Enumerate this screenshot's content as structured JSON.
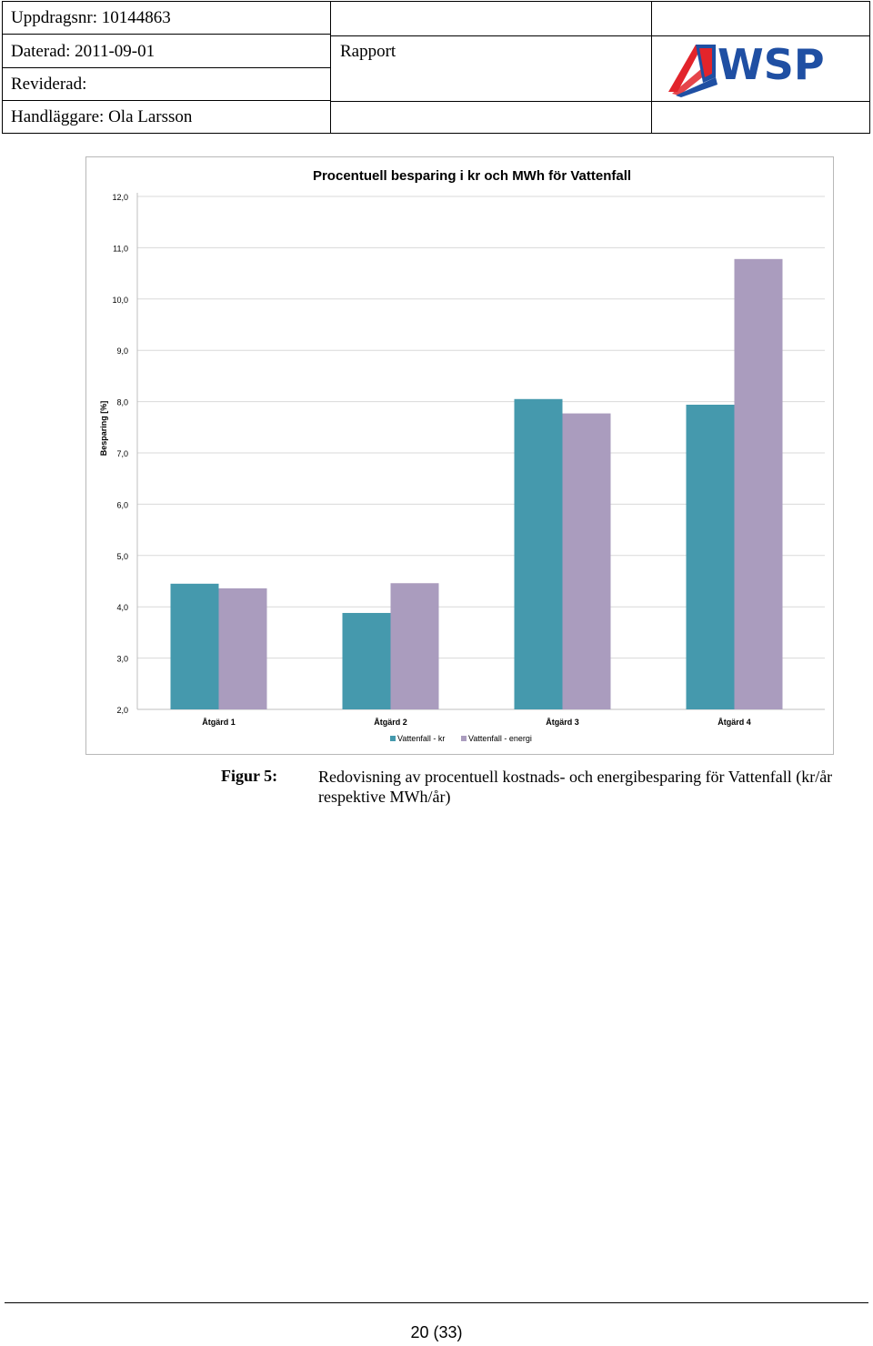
{
  "header": {
    "assignment": "Uppdragsnr: 10144863",
    "dated": "Daterad: 2011-09-01",
    "revised": "Reviderad:",
    "handler": "Handläggare: Ola Larsson",
    "doc_type": "Rapport",
    "logo_text": "WSP",
    "logo_colors": {
      "blue": "#1f4fa3",
      "red": "#e2242b"
    }
  },
  "chart_data": {
    "type": "bar",
    "title": "Procentuell besparing i kr och MWh för Vattenfall",
    "ylabel": "Besparing [%]",
    "xlabel": "",
    "ylim": [
      2.0,
      12.0
    ],
    "yticks": [
      "2,0",
      "3,0",
      "4,0",
      "5,0",
      "6,0",
      "7,0",
      "8,0",
      "9,0",
      "10,0",
      "11,0",
      "12,0"
    ],
    "grid": true,
    "legend_position": "bottom",
    "categories": [
      "Åtgärd 1",
      "Åtgärd 2",
      "Åtgärd 3",
      "Åtgärd 4"
    ],
    "series": [
      {
        "name": "Vattenfall - kr",
        "color": "#4599ad",
        "values": [
          4.45,
          3.88,
          8.05,
          7.94
        ]
      },
      {
        "name": "Vattenfall - energi",
        "color": "#aa9cbe",
        "values": [
          4.36,
          4.46,
          7.77,
          10.78
        ]
      }
    ]
  },
  "caption": {
    "label": "Figur 5:",
    "text": "Redovisning av procentuell kostnads- och energibesparing för Vattenfall (kr/år respektive MWh/år)"
  },
  "footer": {
    "page": "20 (33)"
  }
}
